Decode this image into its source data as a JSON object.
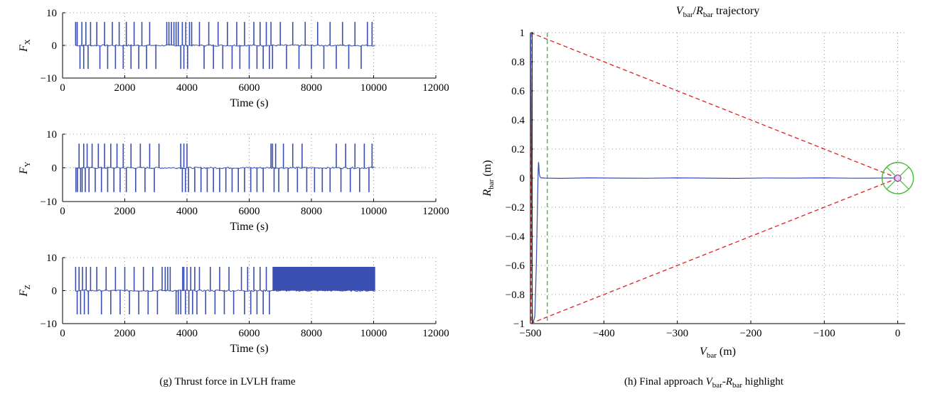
{
  "captions": {
    "left": "(g) Thrust force in LVLH frame",
    "right_prefix": "(h) Final approach ",
    "right_v": "V",
    "right_v_sub": "bar",
    "right_dash": "-",
    "right_r": "R",
    "right_r_sub": "bar",
    "right_suffix": " highlight"
  },
  "chart_data": [
    {
      "type": "line",
      "id": "fx",
      "ylabel_main": "F",
      "ylabel_sub": "X",
      "xlabel": "Time (s)",
      "xlim": [
        0,
        12000
      ],
      "ylim": [
        -10,
        10
      ],
      "xticks": [
        0,
        2000,
        4000,
        6000,
        8000,
        10000,
        12000
      ],
      "yticks": [
        -10,
        0,
        10
      ],
      "grid": "dotted",
      "color": "#3a4fb0",
      "amplitude": 7.2,
      "t_start": 400,
      "t_end": 10050,
      "pulses": [
        {
          "t": 420,
          "s": 1
        },
        {
          "t": 470,
          "s": 1
        },
        {
          "t": 560,
          "s": -1
        },
        {
          "t": 620,
          "s": 1
        },
        {
          "t": 680,
          "s": -1
        },
        {
          "t": 750,
          "s": 1
        },
        {
          "t": 820,
          "s": -1
        },
        {
          "t": 900,
          "s": 1
        },
        {
          "t": 1100,
          "s": 1
        },
        {
          "t": 1200,
          "s": -1
        },
        {
          "t": 1350,
          "s": 1
        },
        {
          "t": 1450,
          "s": -1
        },
        {
          "t": 1600,
          "s": 1
        },
        {
          "t": 1700,
          "s": -1
        },
        {
          "t": 1820,
          "s": 1
        },
        {
          "t": 1950,
          "s": -1
        },
        {
          "t": 2050,
          "s": 1
        },
        {
          "t": 2200,
          "s": -1
        },
        {
          "t": 2300,
          "s": 1
        },
        {
          "t": 2450,
          "s": -1
        },
        {
          "t": 2550,
          "s": 1
        },
        {
          "t": 2700,
          "s": -1
        },
        {
          "t": 2800,
          "s": 1
        },
        {
          "t": 3000,
          "s": -1
        },
        {
          "t": 3350,
          "s": 1
        },
        {
          "t": 3420,
          "s": 1
        },
        {
          "t": 3500,
          "s": 1
        },
        {
          "t": 3580,
          "s": 1
        },
        {
          "t": 3650,
          "s": 1
        },
        {
          "t": 3720,
          "s": 1
        },
        {
          "t": 3800,
          "s": -1
        },
        {
          "t": 3850,
          "s": 1
        },
        {
          "t": 3900,
          "s": -1
        },
        {
          "t": 3960,
          "s": 1
        },
        {
          "t": 4020,
          "s": -1
        },
        {
          "t": 4080,
          "s": 1
        },
        {
          "t": 4150,
          "s": 1
        },
        {
          "t": 4400,
          "s": 1
        },
        {
          "t": 4550,
          "s": -1
        },
        {
          "t": 4700,
          "s": 1
        },
        {
          "t": 4850,
          "s": -1
        },
        {
          "t": 5000,
          "s": 1
        },
        {
          "t": 5150,
          "s": -1
        },
        {
          "t": 5300,
          "s": 1
        },
        {
          "t": 5450,
          "s": -1
        },
        {
          "t": 5600,
          "s": 1
        },
        {
          "t": 5700,
          "s": -1
        },
        {
          "t": 5850,
          "s": 1
        },
        {
          "t": 6000,
          "s": -1
        },
        {
          "t": 6150,
          "s": 1
        },
        {
          "t": 6250,
          "s": -1
        },
        {
          "t": 6350,
          "s": 1
        },
        {
          "t": 6450,
          "s": -1
        },
        {
          "t": 6550,
          "s": 1
        },
        {
          "t": 6650,
          "s": -1
        },
        {
          "t": 6700,
          "s": 1
        },
        {
          "t": 6750,
          "s": -1
        },
        {
          "t": 7000,
          "s": 1
        },
        {
          "t": 7200,
          "s": -1
        },
        {
          "t": 7400,
          "s": 1
        },
        {
          "t": 7600,
          "s": -1
        },
        {
          "t": 7800,
          "s": 1
        },
        {
          "t": 8000,
          "s": -1
        },
        {
          "t": 8200,
          "s": 1
        },
        {
          "t": 8400,
          "s": -1
        },
        {
          "t": 8600,
          "s": 1
        },
        {
          "t": 8800,
          "s": -1
        },
        {
          "t": 9000,
          "s": 1
        },
        {
          "t": 9200,
          "s": -1
        },
        {
          "t": 9400,
          "s": 1
        },
        {
          "t": 9600,
          "s": -1
        },
        {
          "t": 9800,
          "s": 1
        },
        {
          "t": 9950,
          "s": 1
        }
      ]
    },
    {
      "type": "line",
      "id": "fy",
      "ylabel_main": "F",
      "ylabel_sub": "Y",
      "xlabel": "Time (s)",
      "xlim": [
        0,
        12000
      ],
      "ylim": [
        -10,
        10
      ],
      "xticks": [
        0,
        2000,
        4000,
        6000,
        8000,
        10000,
        12000
      ],
      "yticks": [
        -10,
        0,
        10
      ],
      "grid": "dotted",
      "color": "#3a4fb0",
      "amplitude": 7.2,
      "t_start": 400,
      "t_end": 10050,
      "pulses": [
        {
          "t": 430,
          "s": -1
        },
        {
          "t": 480,
          "s": -1
        },
        {
          "t": 530,
          "s": 1
        },
        {
          "t": 580,
          "s": -1
        },
        {
          "t": 630,
          "s": -1
        },
        {
          "t": 680,
          "s": 1
        },
        {
          "t": 730,
          "s": -1
        },
        {
          "t": 790,
          "s": 1
        },
        {
          "t": 850,
          "s": -1
        },
        {
          "t": 950,
          "s": 1
        },
        {
          "t": 1050,
          "s": -1
        },
        {
          "t": 1150,
          "s": 1
        },
        {
          "t": 1250,
          "s": -1
        },
        {
          "t": 1350,
          "s": 1
        },
        {
          "t": 1450,
          "s": -1
        },
        {
          "t": 1550,
          "s": 1
        },
        {
          "t": 1650,
          "s": -1
        },
        {
          "t": 1750,
          "s": 1
        },
        {
          "t": 1850,
          "s": -1
        },
        {
          "t": 1950,
          "s": 1
        },
        {
          "t": 2050,
          "s": -1
        },
        {
          "t": 2200,
          "s": 1
        },
        {
          "t": 2350,
          "s": -1
        },
        {
          "t": 2500,
          "s": 1
        },
        {
          "t": 2650,
          "s": -1
        },
        {
          "t": 2800,
          "s": 1
        },
        {
          "t": 2950,
          "s": -1
        },
        {
          "t": 3100,
          "s": 1
        },
        {
          "t": 3800,
          "s": 1
        },
        {
          "t": 3850,
          "s": -1
        },
        {
          "t": 3900,
          "s": 1
        },
        {
          "t": 3950,
          "s": -1
        },
        {
          "t": 4000,
          "s": 1
        },
        {
          "t": 4050,
          "s": -1
        },
        {
          "t": 4250,
          "s": -1
        },
        {
          "t": 4450,
          "s": -1
        },
        {
          "t": 4650,
          "s": -1
        },
        {
          "t": 4850,
          "s": -1
        },
        {
          "t": 5050,
          "s": -1
        },
        {
          "t": 5250,
          "s": -1
        },
        {
          "t": 5450,
          "s": -1
        },
        {
          "t": 5650,
          "s": -1
        },
        {
          "t": 5850,
          "s": -1
        },
        {
          "t": 6050,
          "s": -1
        },
        {
          "t": 6250,
          "s": -1
        },
        {
          "t": 6450,
          "s": -1
        },
        {
          "t": 6700,
          "s": 1
        },
        {
          "t": 6750,
          "s": 1
        },
        {
          "t": 6800,
          "s": -1
        },
        {
          "t": 6850,
          "s": 1
        },
        {
          "t": 6950,
          "s": -1
        },
        {
          "t": 7100,
          "s": 1
        },
        {
          "t": 7250,
          "s": -1
        },
        {
          "t": 7400,
          "s": 1
        },
        {
          "t": 7550,
          "s": -1
        },
        {
          "t": 7700,
          "s": 1
        },
        {
          "t": 7850,
          "s": -1
        },
        {
          "t": 8100,
          "s": -1
        },
        {
          "t": 8350,
          "s": -1
        },
        {
          "t": 8600,
          "s": -1
        },
        {
          "t": 8800,
          "s": 1
        },
        {
          "t": 8950,
          "s": -1
        },
        {
          "t": 9100,
          "s": 1
        },
        {
          "t": 9250,
          "s": -1
        },
        {
          "t": 9400,
          "s": 1
        },
        {
          "t": 9550,
          "s": -1
        },
        {
          "t": 9700,
          "s": 1
        },
        {
          "t": 9850,
          "s": -1
        },
        {
          "t": 9950,
          "s": 1
        }
      ]
    },
    {
      "type": "line",
      "id": "fz",
      "ylabel_main": "F",
      "ylabel_sub": "Z",
      "xlabel": "Time (s)",
      "xlim": [
        0,
        12000
      ],
      "ylim": [
        -10,
        10
      ],
      "xticks": [
        0,
        2000,
        4000,
        6000,
        8000,
        10000,
        12000
      ],
      "yticks": [
        -10,
        0,
        10
      ],
      "grid": "dotted",
      "color": "#3a4fb0",
      "amplitude": 7.2,
      "t_start": 400,
      "t_end": 10050,
      "dense_block": [
        6750,
        10050
      ],
      "pulses": [
        {
          "t": 420,
          "s": 1
        },
        {
          "t": 470,
          "s": -1
        },
        {
          "t": 530,
          "s": 1
        },
        {
          "t": 580,
          "s": -1
        },
        {
          "t": 640,
          "s": 1
        },
        {
          "t": 700,
          "s": -1
        },
        {
          "t": 760,
          "s": 1
        },
        {
          "t": 830,
          "s": -1
        },
        {
          "t": 900,
          "s": 1
        },
        {
          "t": 1100,
          "s": 1
        },
        {
          "t": 1250,
          "s": -1
        },
        {
          "t": 1400,
          "s": 1
        },
        {
          "t": 1550,
          "s": -1
        },
        {
          "t": 1700,
          "s": 1
        },
        {
          "t": 1850,
          "s": -1
        },
        {
          "t": 2000,
          "s": 1
        },
        {
          "t": 2150,
          "s": -1
        },
        {
          "t": 2300,
          "s": 1
        },
        {
          "t": 2450,
          "s": -1
        },
        {
          "t": 2600,
          "s": 1
        },
        {
          "t": 2750,
          "s": -1
        },
        {
          "t": 2900,
          "s": 1
        },
        {
          "t": 3050,
          "s": -1
        },
        {
          "t": 3200,
          "s": 1
        },
        {
          "t": 3300,
          "s": 1
        },
        {
          "t": 3380,
          "s": 1
        },
        {
          "t": 3460,
          "s": 1
        },
        {
          "t": 3650,
          "s": -1
        },
        {
          "t": 3720,
          "s": -1
        },
        {
          "t": 3800,
          "s": -1
        },
        {
          "t": 3860,
          "s": 1
        },
        {
          "t": 3900,
          "s": 1
        },
        {
          "t": 3950,
          "s": -1
        },
        {
          "t": 4000,
          "s": 1
        },
        {
          "t": 4060,
          "s": -1
        },
        {
          "t": 4120,
          "s": 1
        },
        {
          "t": 4180,
          "s": -1
        },
        {
          "t": 4250,
          "s": 1
        },
        {
          "t": 4320,
          "s": -1
        },
        {
          "t": 4400,
          "s": 1
        },
        {
          "t": 4600,
          "s": -1
        },
        {
          "t": 4750,
          "s": 1
        },
        {
          "t": 4900,
          "s": -1
        },
        {
          "t": 5050,
          "s": 1
        },
        {
          "t": 5200,
          "s": -1
        },
        {
          "t": 5350,
          "s": 1
        },
        {
          "t": 5500,
          "s": -1
        },
        {
          "t": 5750,
          "s": 1
        },
        {
          "t": 5850,
          "s": -1
        },
        {
          "t": 5950,
          "s": 1
        },
        {
          "t": 6050,
          "s": -1
        },
        {
          "t": 6150,
          "s": 1
        },
        {
          "t": 6250,
          "s": -1
        },
        {
          "t": 6350,
          "s": 1
        },
        {
          "t": 6450,
          "s": -1
        },
        {
          "t": 6550,
          "s": 1
        },
        {
          "t": 6650,
          "s": -1
        }
      ]
    },
    {
      "type": "line",
      "id": "traj",
      "title_v": "V",
      "title_v_sub": "bar",
      "title_slash": "/",
      "title_r": "R",
      "title_r_sub": "bar",
      "title_rest": " trajectory",
      "xlabel_main": "V",
      "xlabel_sub": "bar",
      "xlabel_unit": " (m)",
      "ylabel_main": "R",
      "ylabel_sub": "bar",
      "ylabel_unit": " (m)",
      "xlim": [
        -500,
        10
      ],
      "ylim": [
        -1,
        1
      ],
      "xticks": [
        -500,
        -400,
        -300,
        -200,
        -100,
        0
      ],
      "yticks": [
        -1,
        -0.8,
        -0.6,
        -0.4,
        -0.2,
        0,
        0.2,
        0.4,
        0.6,
        0.8,
        1
      ],
      "grid": "dotted",
      "trajectory": {
        "color": "#3a4fb0",
        "x": [
          -500,
          -499.5,
          -499,
          -498.5,
          -498,
          -497.5,
          -497,
          -496,
          -495,
          -494,
          -493,
          -492,
          -491,
          -490,
          -489.5,
          -489,
          -488.5,
          -488,
          -487,
          -486,
          -485,
          -484,
          -480,
          -460,
          -420,
          -380,
          -340,
          -300,
          -260,
          -220,
          -180,
          -140,
          -100,
          -60,
          -30,
          -10,
          0
        ],
        "y": [
          1,
          0.99,
          0.6,
          0.1,
          -0.4,
          -0.9,
          -0.99,
          -0.985,
          -0.97,
          -0.95,
          -0.8,
          -0.6,
          -0.35,
          -0.1,
          0.05,
          0.11,
          0.09,
          0.03,
          0.01,
          0.003,
          0,
          0.002,
          0,
          -0.002,
          0.002,
          0,
          -0.001,
          0.002,
          0,
          -0.002,
          0.001,
          0,
          0.002,
          -0.001,
          0,
          0.001,
          0
        ]
      },
      "cone_lines": {
        "color": "#e02020",
        "upper": {
          "x": [
            -500,
            0
          ],
          "y": [
            1,
            0
          ]
        },
        "lower": {
          "x": [
            -500,
            0
          ],
          "y": [
            -1,
            0
          ]
        }
      },
      "vertical_marker": {
        "color": "#33aa22",
        "x": -477
      },
      "target": {
        "color": "#44bb33",
        "core_color": "#9944aa",
        "x": 0,
        "y": 0
      }
    }
  ]
}
